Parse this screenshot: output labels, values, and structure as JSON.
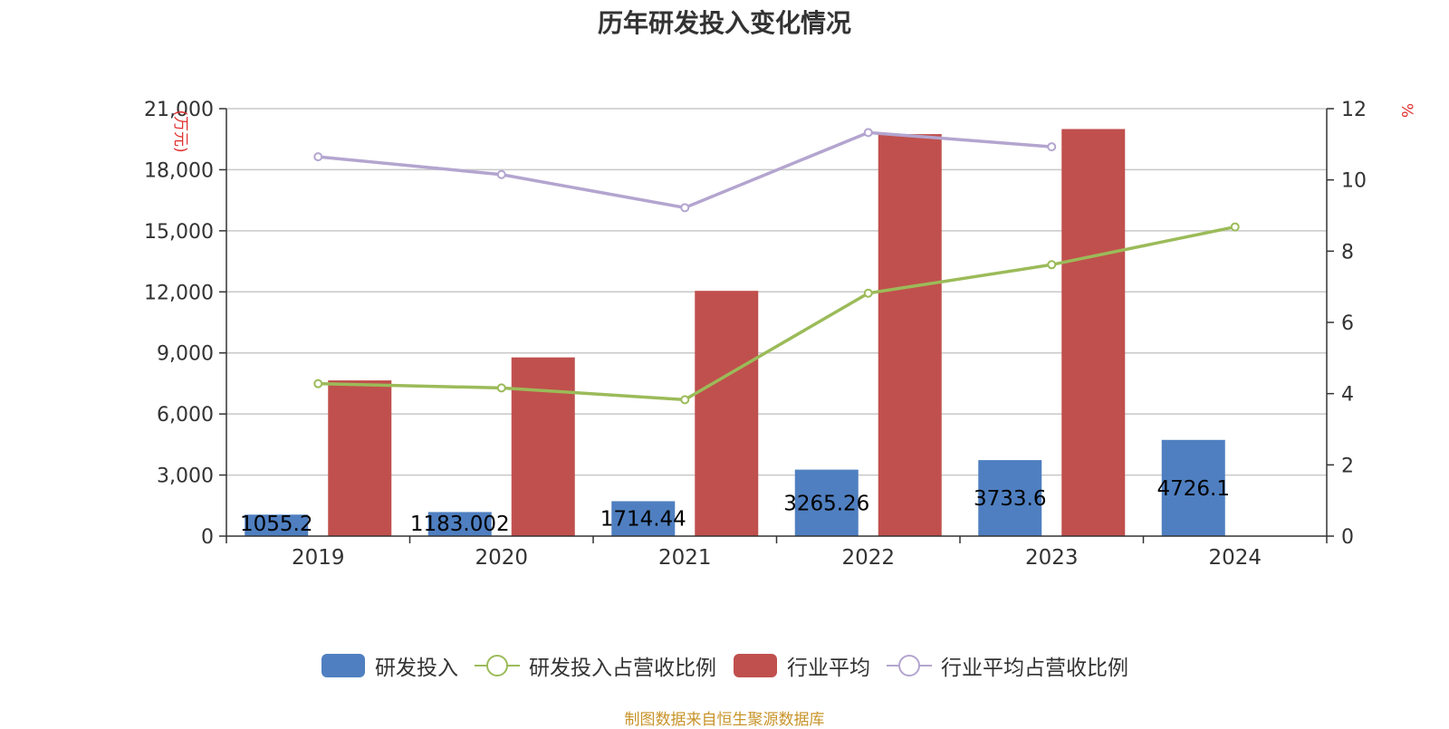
{
  "title": "历年研发投入变化情况",
  "source_note": "制图数据来自恒生聚源数据库",
  "chart_data": {
    "type": "bar",
    "title": "历年研发投入变化情况",
    "categories": [
      "2019",
      "2020",
      "2021",
      "2022",
      "2023",
      "2024"
    ],
    "y_left": {
      "unit": "万元",
      "ylim": [
        0,
        21000
      ],
      "ticks": [
        "0",
        "3,000",
        "6,000",
        "9,000",
        "12,000",
        "15,000",
        "18,000",
        "21,000"
      ]
    },
    "y_right": {
      "unit": "%",
      "ylim": [
        0,
        12
      ],
      "ticks": [
        "0",
        "2",
        "4",
        "6",
        "8",
        "10",
        "12"
      ]
    },
    "grid": true,
    "legend_position": "bottom",
    "series": [
      {
        "name": "研发投入",
        "kind": "bar",
        "axis": "left",
        "color": "#4f7fc0",
        "values": [
          1055.2,
          1183.002,
          1714.44,
          3265.26,
          3733.6,
          4726.1
        ],
        "labels": [
          "1055.2",
          "1183.002",
          "1714.44",
          "3265.26",
          "3733.6",
          "4726.1"
        ]
      },
      {
        "name": "研发投入占营收比例",
        "kind": "line",
        "axis": "right",
        "color": "#9bbb59",
        "values": [
          4.28,
          4.16,
          3.83,
          6.82,
          7.62,
          8.68
        ]
      },
      {
        "name": "行业平均",
        "kind": "bar",
        "axis": "left",
        "color": "#c0504d",
        "values": [
          7650,
          8780,
          12050,
          19750,
          20000,
          null
        ]
      },
      {
        "name": "行业平均占营收比例",
        "kind": "line",
        "axis": "right",
        "color": "#b3a5cf",
        "values": [
          10.65,
          10.15,
          9.22,
          11.33,
          10.93,
          null
        ]
      }
    ]
  }
}
